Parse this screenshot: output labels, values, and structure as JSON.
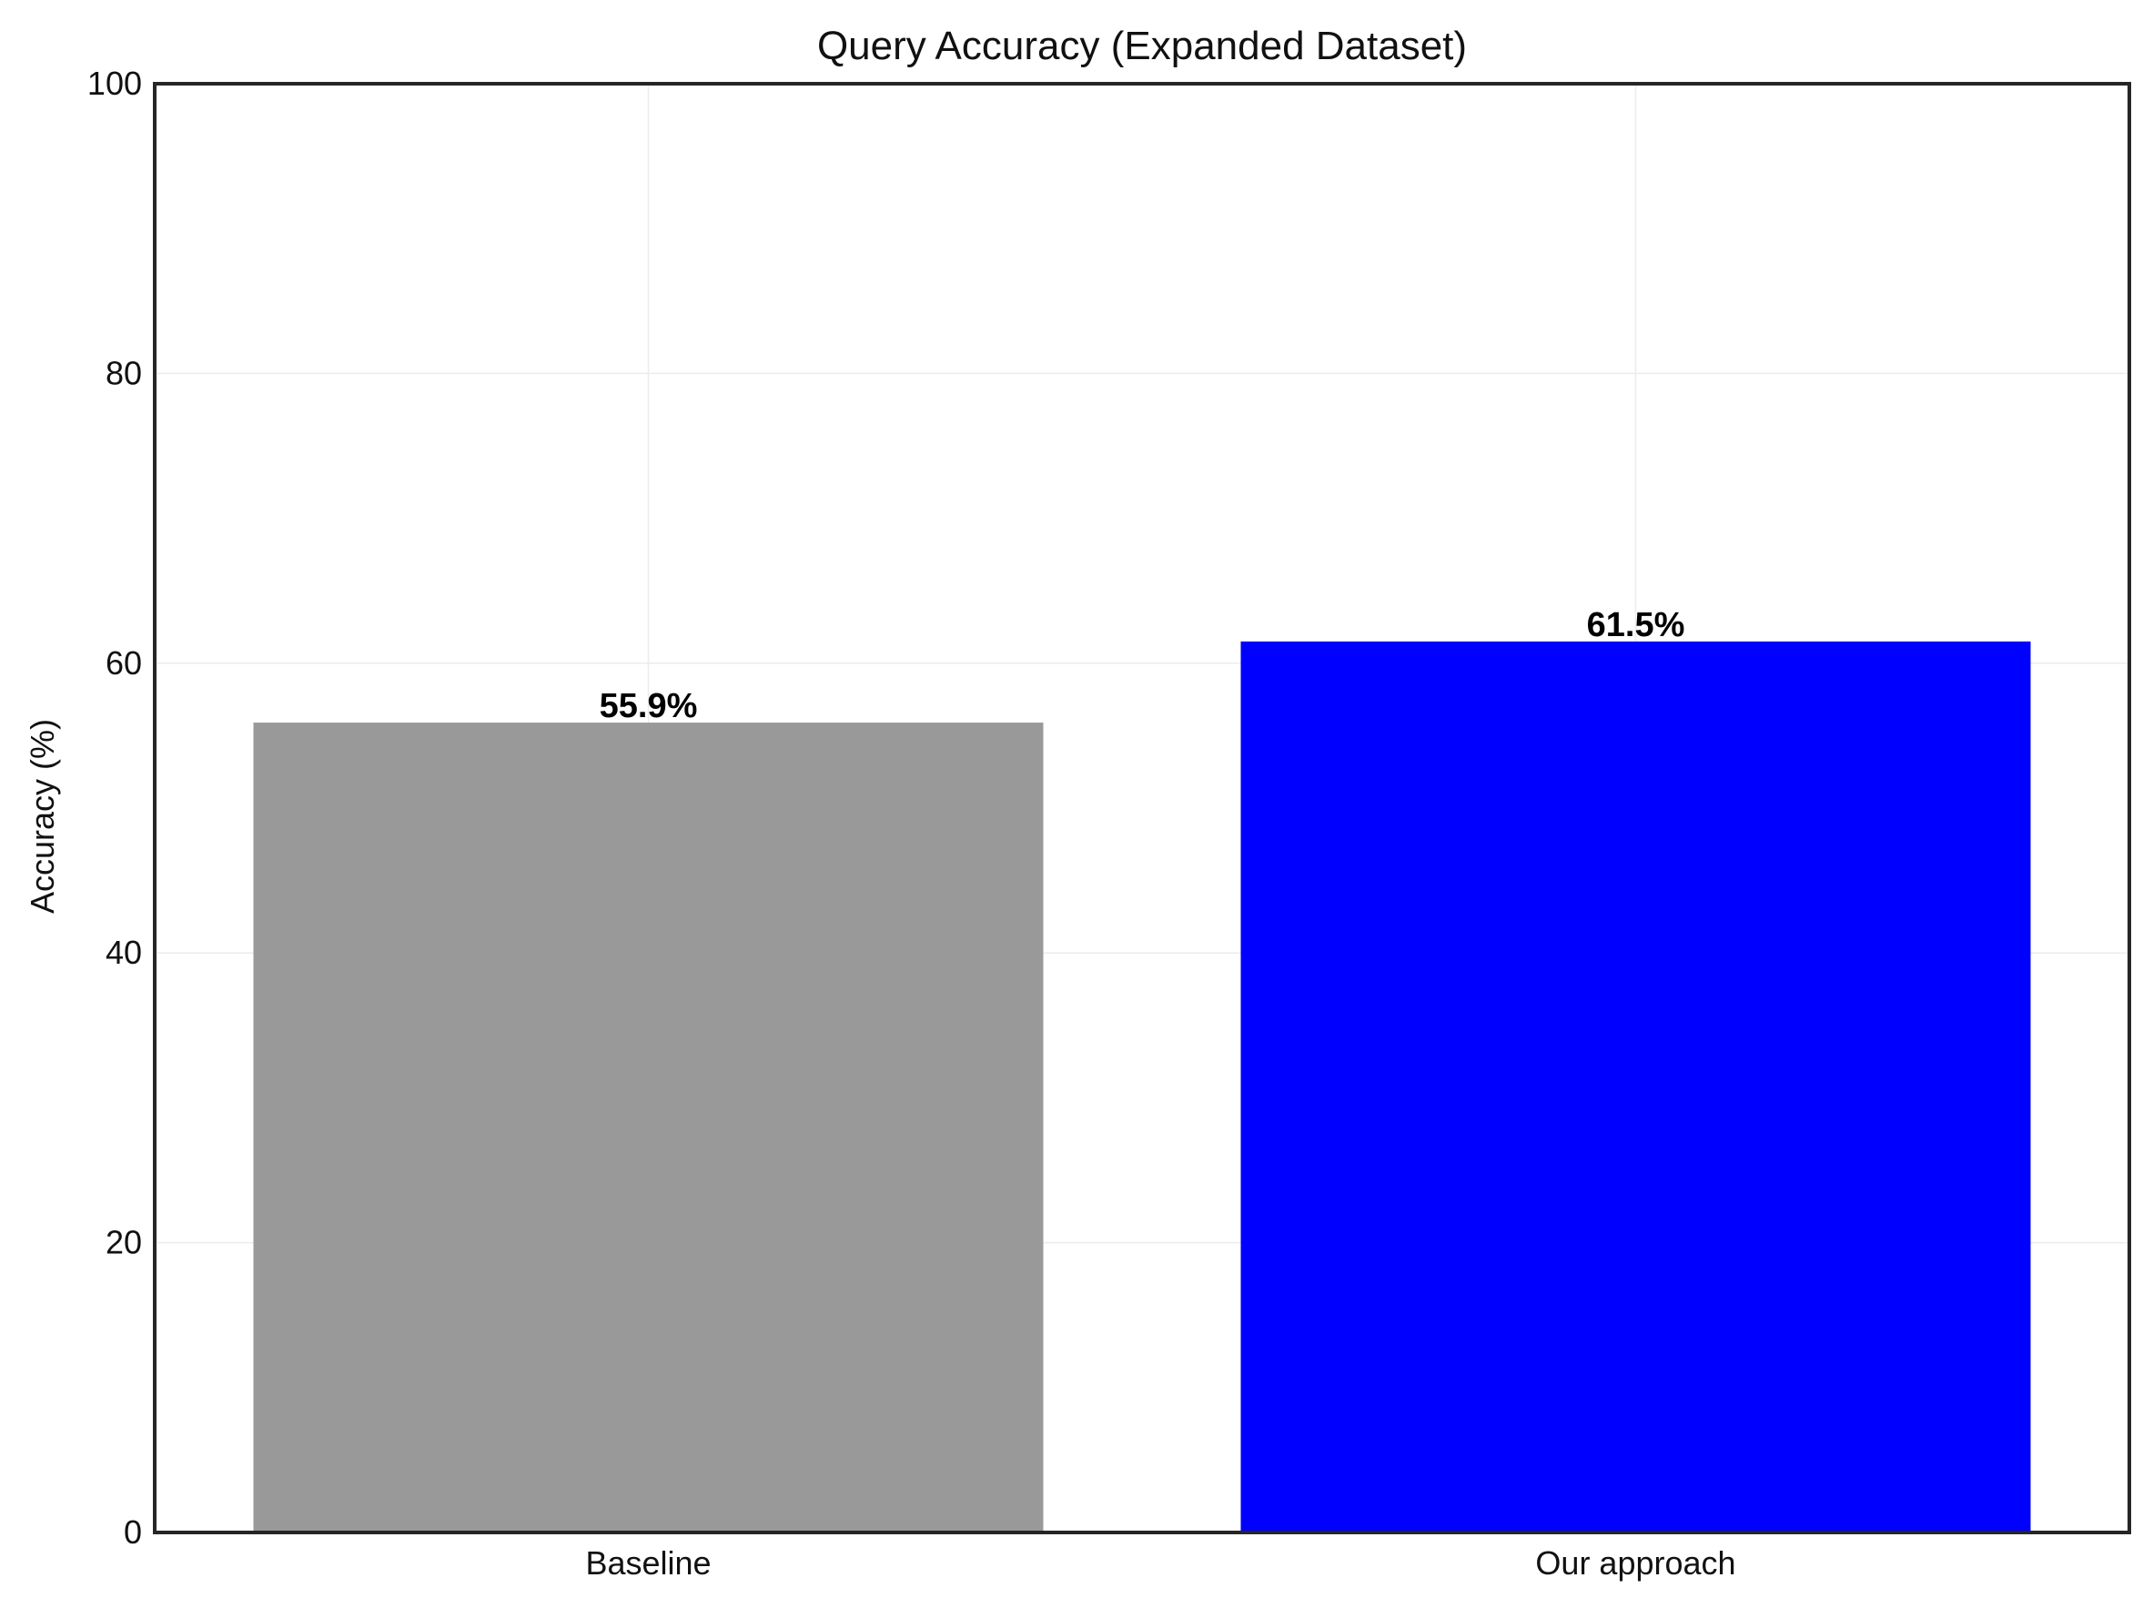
{
  "chart_data": {
    "type": "bar",
    "title": "Query Accuracy (Expanded Dataset)",
    "xlabel": "",
    "ylabel": "Accuracy (%)",
    "ylim": [
      0,
      100
    ],
    "yticks": [
      0,
      20,
      40,
      60,
      80,
      100
    ],
    "categories": [
      "Baseline",
      "Our approach"
    ],
    "values": [
      55.9,
      61.5
    ],
    "value_labels": [
      "55.9%",
      "61.5%"
    ],
    "colors": [
      "#999999",
      "#0000ff"
    ],
    "grid": true,
    "legend": "none"
  }
}
